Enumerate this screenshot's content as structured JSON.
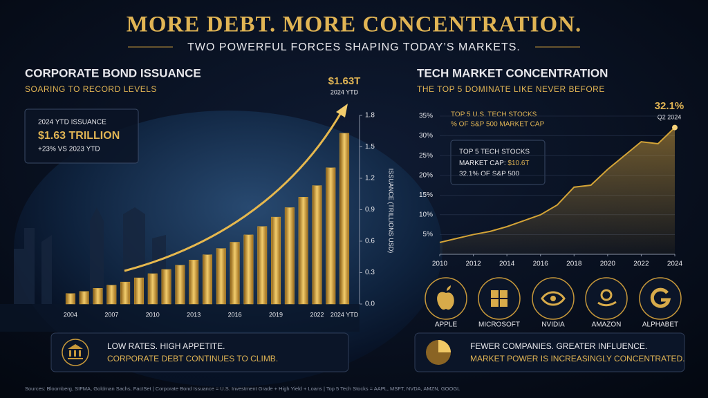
{
  "header": {
    "title": "MORE DEBT. MORE CONCENTRATION.",
    "subtitle": "TWO POWERFUL FORCES SHAPING TODAY’S MARKETS."
  },
  "chart_data": [
    {
      "type": "bar",
      "title": "CORPORATE BOND ISSUANCE",
      "subtitle": "SOARING TO RECORD LEVELS",
      "y_label": "ISSUANCE (TRILLIONS USD)",
      "categories": [
        "2004",
        null,
        null,
        "2007",
        null,
        null,
        "2010",
        null,
        null,
        "2013",
        null,
        null,
        "2016",
        null,
        null,
        "2019",
        null,
        null,
        "2022",
        null,
        "2024 YTD"
      ],
      "values": [
        0.1,
        0.12,
        0.15,
        0.18,
        0.21,
        0.25,
        0.29,
        0.33,
        0.37,
        0.42,
        0.47,
        0.53,
        0.59,
        0.66,
        0.74,
        0.83,
        0.92,
        1.02,
        1.13,
        1.3,
        1.63
      ],
      "color": "#d4a437",
      "ylim": [
        0,
        1.8
      ],
      "yticks": [
        {
          "value": 0,
          "label": "0.0"
        },
        0.3,
        0.6,
        0.9,
        1.2,
        1.5,
        1.8
      ],
      "peak_value": "$1.63T",
      "peak_label": "2024 YTD"
    },
    {
      "type": "line",
      "title": "TECH MARKET CONCENTRATION",
      "subtitle": "THE TOP 5 DOMINATE LIKE NEVER BEFORE",
      "series_label": [
        "TOP 5 U.S. TECH STOCKS",
        "% OF S&P 500 MARKET CAP"
      ],
      "x": [
        2010,
        2011,
        2012,
        2013,
        2014,
        2015,
        2016,
        2017,
        2018,
        2019,
        2020,
        2021,
        2022,
        2023,
        2024
      ],
      "values": [
        3.0,
        4.0,
        5.0,
        5.8,
        7.0,
        8.5,
        10.0,
        12.5,
        17.0,
        17.5,
        21.5,
        25.0,
        28.5,
        28.0,
        32.1
      ],
      "color": "#d4a437",
      "xlim": [
        2010,
        2024
      ],
      "xticks": [
        2010,
        2012,
        2014,
        2016,
        2018,
        2020,
        2022,
        2024
      ],
      "ylim": [
        0,
        35
      ],
      "yticks": [
        {
          "value": 5,
          "label": "5%"
        },
        {
          "value": 10,
          "label": "10%"
        },
        {
          "value": 15,
          "label": "15%"
        },
        {
          "value": 20,
          "label": "20%"
        },
        {
          "value": 25,
          "label": "25%"
        },
        {
          "value": 30,
          "label": "30%"
        },
        {
          "value": 35,
          "label": "35%"
        }
      ],
      "end_value": "32.1%",
      "end_label": "Q2 2024"
    }
  ],
  "left_callout": {
    "label": "2024 YTD ISSUANCE",
    "value": "$1.63 TRILLION",
    "change": "+23% VS 2023 YTD"
  },
  "left_note": {
    "line1": "LOW RATES. HIGH APPETITE.",
    "line2": "CORPORATE DEBT CONTINUES TO CLIMB."
  },
  "right_callout": {
    "line1": "TOP 5 TECH STOCKS",
    "line2_label": "MARKET CAP:",
    "line2_value": "$10.6T",
    "line3": "32.1% OF S&P 500"
  },
  "companies": [
    "APPLE",
    "MICROSOFT",
    "NVIDIA",
    "AMAZON",
    "ALPHABET"
  ],
  "right_note": {
    "line1": "FEWER COMPANIES. GREATER INFLUENCE.",
    "line2": "MARKET POWER IS INCREASINGLY CONCENTRATED."
  },
  "footer": "Sources: Bloomberg, SIFMA, Goldman Sachs, FactSet   |   Corporate Bond Issuance = U.S. Investment Grade + High Yield + Loans   |   Top 5 Tech Stocks = AAPL, MSFT, NVDA, AMZN, GOOGL"
}
